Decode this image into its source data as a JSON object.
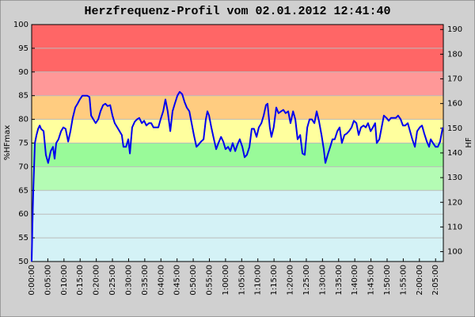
{
  "chart_data": {
    "type": "line",
    "title": "Herzfrequenz-Profil vom 02.01.2012 12:41:40",
    "ylabel": "%HFmax",
    "y2label": "HF",
    "xlim": [
      0,
      127.4
    ],
    "ylim": [
      50,
      100
    ],
    "y2lim": [
      96,
      192
    ],
    "yticks": [
      50,
      55,
      60,
      65,
      70,
      75,
      80,
      85,
      90,
      95,
      100
    ],
    "y2ticks": [
      100,
      110,
      120,
      130,
      140,
      150,
      160,
      170,
      180,
      190
    ],
    "xticks": [
      {
        "value": 0,
        "label": "0:00:00"
      },
      {
        "value": 5,
        "label": "0:05:00"
      },
      {
        "value": 10,
        "label": "0:10:00"
      },
      {
        "value": 15,
        "label": "0:15:00"
      },
      {
        "value": 20,
        "label": "0:20:00"
      },
      {
        "value": 25,
        "label": "0:25:00"
      },
      {
        "value": 30,
        "label": "0:30:00"
      },
      {
        "value": 35,
        "label": "0:35:00"
      },
      {
        "value": 40,
        "label": "0:40:00"
      },
      {
        "value": 45,
        "label": "0:45:00"
      },
      {
        "value": 50,
        "label": "0:50:00"
      },
      {
        "value": 55,
        "label": "0:55:00"
      },
      {
        "value": 60,
        "label": "1:00:00"
      },
      {
        "value": 65,
        "label": "1:05:00"
      },
      {
        "value": 70,
        "label": "1:10:00"
      },
      {
        "value": 75,
        "label": "1:15:00"
      },
      {
        "value": 80,
        "label": "1:20:00"
      },
      {
        "value": 85,
        "label": "1:25:00"
      },
      {
        "value": 90,
        "label": "1:30:00"
      },
      {
        "value": 95,
        "label": "1:35:00"
      },
      {
        "value": 100,
        "label": "1:40:00"
      },
      {
        "value": 105,
        "label": "1:45:00"
      },
      {
        "value": 110,
        "label": "1:50:00"
      },
      {
        "value": 115,
        "label": "1:55:00"
      },
      {
        "value": 120,
        "label": "2:00:00"
      },
      {
        "value": 125,
        "label": "2:05:00"
      }
    ],
    "grid": true,
    "zones": [
      {
        "from": 50,
        "to": 65,
        "color": "#d4f2f6"
      },
      {
        "from": 65,
        "to": 70,
        "color": "#b4fcb4"
      },
      {
        "from": 70,
        "to": 75,
        "color": "#99fa99"
      },
      {
        "from": 75,
        "to": 80,
        "color": "#ffff9e"
      },
      {
        "from": 80,
        "to": 85,
        "color": "#ffcc80"
      },
      {
        "from": 85,
        "to": 90,
        "color": "#ff9898"
      },
      {
        "from": 90,
        "to": 100,
        "color": "#ff6666"
      }
    ],
    "x": [
      0.0,
      0.2,
      0.5,
      1.0,
      1.5,
      2.0,
      2.5,
      2.9,
      3.7,
      4.4,
      5.1,
      5.9,
      6.6,
      7.1,
      7.6,
      8.3,
      9.1,
      9.8,
      10.5,
      11.3,
      12.0,
      12.7,
      13.5,
      14.2,
      14.9,
      15.7,
      16.4,
      17.2,
      17.9,
      18.4,
      19.1,
      19.8,
      20.6,
      21.3,
      22.1,
      22.8,
      23.5,
      24.3,
      25.0,
      25.7,
      26.5,
      27.2,
      27.9,
      28.4,
      29.2,
      29.9,
      30.4,
      31.1,
      31.9,
      32.6,
      33.3,
      34.1,
      34.8,
      35.5,
      36.3,
      37.0,
      37.7,
      38.5,
      39.2,
      39.9,
      40.7,
      41.4,
      42.1,
      42.9,
      43.6,
      44.3,
      45.1,
      45.8,
      46.6,
      47.3,
      48.0,
      48.8,
      49.5,
      50.2,
      51.0,
      51.7,
      52.4,
      53.2,
      53.9,
      54.4,
      54.9,
      55.6,
      56.4,
      57.1,
      57.8,
      58.6,
      59.3,
      60.0,
      60.8,
      61.5,
      62.2,
      63.0,
      63.7,
      64.4,
      65.2,
      65.9,
      66.6,
      67.4,
      68.1,
      68.8,
      69.6,
      70.3,
      71.1,
      71.8,
      72.5,
      73.0,
      73.7,
      74.2,
      74.9,
      75.7,
      76.4,
      77.2,
      77.9,
      78.6,
      79.4,
      80.1,
      80.9,
      81.6,
      82.3,
      83.1,
      83.8,
      84.5,
      85.3,
      86.0,
      86.7,
      87.5,
      88.2,
      88.9,
      89.7,
      90.4,
      90.9,
      91.6,
      92.4,
      93.1,
      93.8,
      94.6,
      95.3,
      96.0,
      96.8,
      97.5,
      98.2,
      99.0,
      99.7,
      100.5,
      101.2,
      101.9,
      102.7,
      103.4,
      104.1,
      104.9,
      105.6,
      106.3,
      106.8,
      107.6,
      108.3,
      109.0,
      109.8,
      110.5,
      111.2,
      112.0,
      112.7,
      113.4,
      114.2,
      114.9,
      115.6,
      116.4,
      117.1,
      117.8,
      118.6,
      119.3,
      120.1,
      120.8,
      121.5,
      122.3,
      123.0,
      123.5,
      124.2,
      125.0,
      125.7,
      126.4,
      127.2
    ],
    "series": [
      {
        "color": "#0000ee",
        "values": [
          50.0,
          56.7,
          65.0,
          75.0,
          76.7,
          78.0,
          78.7,
          78.0,
          77.5,
          72.5,
          70.8,
          73.3,
          74.2,
          71.7,
          75.0,
          75.8,
          77.5,
          78.3,
          78.0,
          75.3,
          77.5,
          80.3,
          82.5,
          83.3,
          84.2,
          85.0,
          85.0,
          85.0,
          84.7,
          80.8,
          80.0,
          79.2,
          80.0,
          81.7,
          83.0,
          83.3,
          82.8,
          83.0,
          80.8,
          79.2,
          78.3,
          77.5,
          76.7,
          74.2,
          74.2,
          75.8,
          72.8,
          78.3,
          79.5,
          80.0,
          80.3,
          79.2,
          79.7,
          78.7,
          79.2,
          79.2,
          78.3,
          78.3,
          78.3,
          80.0,
          81.7,
          84.2,
          81.7,
          77.5,
          81.7,
          83.3,
          85.0,
          85.8,
          85.3,
          83.7,
          82.5,
          81.7,
          79.2,
          76.7,
          74.2,
          74.7,
          75.3,
          75.8,
          80.0,
          81.7,
          80.8,
          78.3,
          75.8,
          73.7,
          75.0,
          76.3,
          75.3,
          73.7,
          74.2,
          73.3,
          75.0,
          73.3,
          74.7,
          75.8,
          74.2,
          72.0,
          72.5,
          74.2,
          78.0,
          78.0,
          76.3,
          78.3,
          79.2,
          80.8,
          83.0,
          83.3,
          78.3,
          76.3,
          78.3,
          82.5,
          81.3,
          81.7,
          82.0,
          81.3,
          81.7,
          79.2,
          81.7,
          80.0,
          75.8,
          76.7,
          72.8,
          72.5,
          78.3,
          80.0,
          80.0,
          79.2,
          81.7,
          79.7,
          76.7,
          73.7,
          70.8,
          72.5,
          74.2,
          75.8,
          75.8,
          77.5,
          78.3,
          75.0,
          76.7,
          77.0,
          77.5,
          78.3,
          79.7,
          79.2,
          76.7,
          78.3,
          78.7,
          78.3,
          79.2,
          77.5,
          78.3,
          79.2,
          75.0,
          75.8,
          78.3,
          80.8,
          80.3,
          79.7,
          80.3,
          80.3,
          80.3,
          80.8,
          80.0,
          78.7,
          78.7,
          79.2,
          77.5,
          75.8,
          74.2,
          77.5,
          78.3,
          78.7,
          77.0,
          75.3,
          74.2,
          75.8,
          75.0,
          74.2,
          74.2,
          75.3,
          78.3
        ]
      }
    ]
  }
}
